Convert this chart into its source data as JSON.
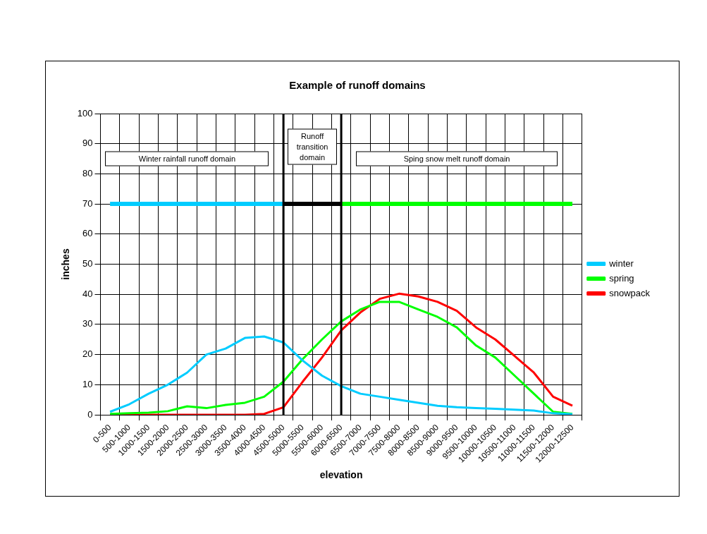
{
  "chart_data": {
    "type": "line",
    "title": "Example of runoff domains",
    "xlabel": "elevation",
    "ylabel": "inches",
    "categories": [
      "0-500",
      "500-1000",
      "1000-1500",
      "1500-2000",
      "2000-2500",
      "2500-3000",
      "3000-3500",
      "3500-4000",
      "4000-4500",
      "4500-5000",
      "5000-5500",
      "5500-6000",
      "6000-6500",
      "6500-7000",
      "7000-7500",
      "7500-8000",
      "8000-8500",
      "8500-9000",
      "9000-9500",
      "9500-10000",
      "10000-10500",
      "10500-11000",
      "11000-11500",
      "11500-12000",
      "12000-12500"
    ],
    "series": [
      {
        "name": "winter",
        "color": "#00ccff",
        "values": [
          1,
          3.5,
          7,
          10,
          14,
          20,
          22,
          25.5,
          26,
          24,
          18,
          13,
          9.5,
          7,
          6,
          5,
          4,
          3,
          2.5,
          2.2,
          2,
          1.7,
          1.4,
          0.5,
          0.2
        ]
      },
      {
        "name": "spring",
        "color": "#00ff00",
        "values": [
          0.3,
          0.5,
          0.7,
          1.2,
          2.8,
          2.2,
          3.3,
          4,
          6,
          11,
          18.5,
          25,
          31,
          35,
          37.5,
          37.5,
          35,
          32.5,
          29,
          23,
          19,
          13,
          7,
          1,
          0.3
        ]
      },
      {
        "name": "snowpack",
        "color": "#ff0000",
        "values": [
          0,
          0,
          0,
          0,
          0,
          0,
          0,
          0,
          0.3,
          2.5,
          11,
          19,
          28,
          34,
          38.5,
          40.2,
          39.3,
          37.5,
          34.5,
          29,
          25,
          19.5,
          14,
          6,
          3
        ]
      },
      {
        "color": "#00ccff",
        "values": [
          70,
          70,
          70,
          70,
          70,
          70,
          70,
          70,
          70,
          70,
          null,
          null,
          null,
          null,
          null,
          null,
          null,
          null,
          null,
          null,
          null,
          null,
          null,
          null,
          null
        ]
      },
      {
        "color": "#000000",
        "values": [
          null,
          null,
          null,
          null,
          null,
          null,
          null,
          null,
          null,
          70,
          70,
          70,
          70,
          null,
          null,
          null,
          null,
          null,
          null,
          null,
          null,
          null,
          null,
          null,
          null
        ]
      },
      {
        "color": "#00ff00",
        "values": [
          null,
          null,
          null,
          null,
          null,
          null,
          null,
          null,
          null,
          null,
          null,
          null,
          70,
          70,
          70,
          70,
          70,
          70,
          70,
          70,
          70,
          70,
          70,
          70,
          70
        ]
      }
    ],
    "ylim": [
      0,
      100
    ],
    "yticks": [
      0,
      10,
      20,
      30,
      40,
      50,
      60,
      70,
      80,
      90,
      100
    ],
    "grid": true,
    "legend": "right",
    "marker": "none",
    "line_style": "solid",
    "ref_lines": [
      {
        "axis": "x",
        "value": "4500-5000",
        "color": "#000000"
      },
      {
        "axis": "x",
        "value": "6000-6500",
        "color": "#000000"
      }
    ],
    "annotations": [
      "Winter rainfall runoff domain",
      "Runoff transition domain",
      "Sping snow melt runoff domain"
    ]
  }
}
